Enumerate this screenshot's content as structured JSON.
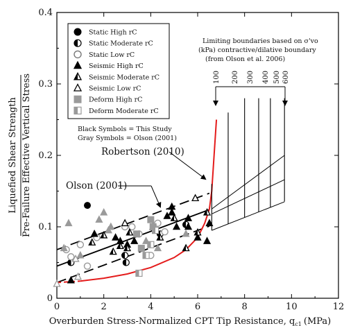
{
  "chart_data": {
    "type": "scatter",
    "xlabel": "Overburden Stress-Normalized CPT Tip Resistance, q",
    "xlabel_sub": "c1",
    "xlabel_unit": "(MPa)",
    "ylabel_line1": "Liquefied Shear Strength",
    "ylabel_line2": "Pre-Failure Effective Vertical Stress",
    "xlim": [
      0,
      12
    ],
    "ylim": [
      0,
      0.4
    ],
    "xticks": [
      "0",
      "2",
      "4",
      "6",
      "8",
      "10",
      "12"
    ],
    "yticks": [
      "0",
      "0.1",
      "0.2",
      "0.3",
      "0.4"
    ],
    "legend_position": "top-left",
    "legend": [
      {
        "label": "Static High rC",
        "marker": "circle-filled"
      },
      {
        "label": "Static Moderate rC",
        "marker": "circle-half"
      },
      {
        "label": "Static Low rC",
        "marker": "circle-open"
      },
      {
        "label": "Seismic High rC",
        "marker": "triangle-filled"
      },
      {
        "label": "Seismic Moderate rC",
        "marker": "triangle-half"
      },
      {
        "label": "Seismic Low rC",
        "marker": "triangle-open"
      },
      {
        "label": "Deform High rC",
        "marker": "square-gray"
      },
      {
        "label": "Deform Moderate rC",
        "marker": "square-half-gray"
      }
    ],
    "symbol_note_1": "Black Symbols = This Study",
    "symbol_note_2": "Gray Symbols = Olson (2001)",
    "annotation_robertson": "Robertson (2010)",
    "annotation_olson": "Olson (2001)",
    "boundary_note_1": "Limiting boundaries based on σ'vo",
    "boundary_note_2": "(kPa) contractive/dilative boundary",
    "boundary_note_3": "(from Olson et al. 2006)",
    "boundary_labels": [
      "100",
      "200",
      "300",
      "400",
      "500",
      "600"
    ],
    "olson_line": {
      "x": [
        0,
        6.5
      ],
      "y": [
        0.045,
        0.124
      ]
    },
    "olson_upper": {
      "x": [
        0,
        6.5
      ],
      "y": [
        0.068,
        0.147
      ]
    },
    "olson_lower": {
      "x": [
        0,
        6.5
      ],
      "y": [
        0.022,
        0.101
      ]
    },
    "robertson_curve": [
      [
        0,
        0.022
      ],
      [
        1,
        0.024
      ],
      [
        2,
        0.028
      ],
      [
        3,
        0.034
      ],
      [
        4,
        0.043
      ],
      [
        5,
        0.057
      ],
      [
        5.5,
        0.068
      ],
      [
        6,
        0.085
      ],
      [
        6.3,
        0.105
      ],
      [
        6.5,
        0.125
      ],
      [
        6.6,
        0.15
      ],
      [
        6.7,
        0.2
      ],
      [
        6.8,
        0.25
      ]
    ],
    "boundary_fan_lines": [
      {
        "from": [
          6.6,
          0.125
        ],
        "to": [
          9.7,
          0.2
        ]
      },
      {
        "from": [
          6.6,
          0.118
        ],
        "to": [
          9.7,
          0.166
        ]
      },
      {
        "from": [
          6.6,
          0.095
        ],
        "to": [
          9.7,
          0.135
        ]
      }
    ],
    "series": [
      {
        "name": "Static High rC",
        "marker": "circle-filled",
        "color": "#000000",
        "points": [
          [
            1.3,
            0.13
          ]
        ]
      },
      {
        "name": "Static Moderate rC",
        "marker": "circle-half",
        "color": "#000000",
        "points": [
          [
            0.6,
            0.05
          ],
          [
            2.9,
            0.06
          ],
          [
            2.95,
            0.05
          ],
          [
            4.4,
            0.09
          ],
          [
            5.5,
            0.103
          ]
        ]
      },
      {
        "name": "Static Low rC",
        "marker": "circle-open",
        "color": "#999999",
        "points": [
          [
            0.4,
            0.068
          ],
          [
            0.6,
            0.058
          ],
          [
            1.0,
            0.075
          ],
          [
            1.3,
            0.045
          ],
          [
            1.7,
            0.085
          ],
          [
            2.9,
            0.1
          ],
          [
            3.2,
            0.1
          ],
          [
            3.5,
            0.09
          ],
          [
            4.0,
            0.06
          ],
          [
            4.3,
            0.105
          ],
          [
            4.6,
            0.093
          ]
        ]
      },
      {
        "name": "Seismic High rC",
        "marker": "triangle-filled",
        "color": "#000000",
        "points": [
          [
            0.6,
            0.025
          ],
          [
            1.6,
            0.09
          ],
          [
            2.5,
            0.085
          ],
          [
            2.7,
            0.08
          ],
          [
            3.0,
            0.075
          ],
          [
            3.3,
            0.08
          ],
          [
            4.7,
            0.115
          ],
          [
            4.9,
            0.12
          ],
          [
            4.9,
            0.128
          ],
          [
            5.1,
            0.1
          ],
          [
            5.6,
            0.112
          ],
          [
            5.6,
            0.1
          ],
          [
            6.0,
            0.085
          ],
          [
            6.4,
            0.08
          ],
          [
            6.5,
            0.105
          ]
        ]
      },
      {
        "name": "Seismic Moderate rC",
        "marker": "triangle-half",
        "color": "#000000",
        "points": [
          [
            1.5,
            0.078
          ],
          [
            2.0,
            0.088
          ],
          [
            2.4,
            0.065
          ],
          [
            2.7,
            0.073
          ],
          [
            3.0,
            0.07
          ],
          [
            3.1,
            0.092
          ],
          [
            4.1,
            0.1
          ],
          [
            4.4,
            0.085
          ],
          [
            5.0,
            0.112
          ],
          [
            5.5,
            0.07
          ],
          [
            6.0,
            0.092
          ],
          [
            6.4,
            0.12
          ]
        ]
      },
      {
        "name": "Seismic Low rC",
        "marker": "triangle-open",
        "color": "#000000",
        "points": [
          [
            2.9,
            0.105
          ],
          [
            5.9,
            0.14
          ]
        ]
      },
      {
        "name": "Gray triangles (Olson 2001)",
        "marker": "triangle-filled",
        "color": "#9a9a9a",
        "points": [
          [
            0.5,
            0.105
          ],
          [
            0.3,
            0.07
          ],
          [
            1.0,
            0.06
          ],
          [
            1.8,
            0.11
          ],
          [
            2.0,
            0.12
          ],
          [
            2.2,
            0.095
          ],
          [
            2.3,
            0.1
          ],
          [
            3.8,
            0.08
          ],
          [
            4.3,
            0.07
          ],
          [
            5.5,
            0.09
          ]
        ]
      },
      {
        "name": "Deform High rC",
        "marker": "square-gray",
        "color": "#9a9a9a",
        "points": [
          [
            3.4,
            0.09
          ],
          [
            4.0,
            0.11
          ],
          [
            3.6,
            0.07
          ],
          [
            4.1,
            0.1
          ]
        ]
      },
      {
        "name": "Deform Moderate rC",
        "marker": "square-half-gray",
        "color": "#9a9a9a",
        "points": [
          [
            3.5,
            0.035
          ],
          [
            4.0,
            0.075
          ],
          [
            4.2,
            0.095
          ],
          [
            3.8,
            0.06
          ]
        ]
      },
      {
        "name": "Gray points near origin",
        "marker": "triangle-open",
        "color": "#9a9a9a",
        "points": [
          [
            0.0,
            0.02
          ],
          [
            0.9,
            0.03
          ],
          [
            0.8,
            0.055
          ]
        ]
      }
    ]
  }
}
